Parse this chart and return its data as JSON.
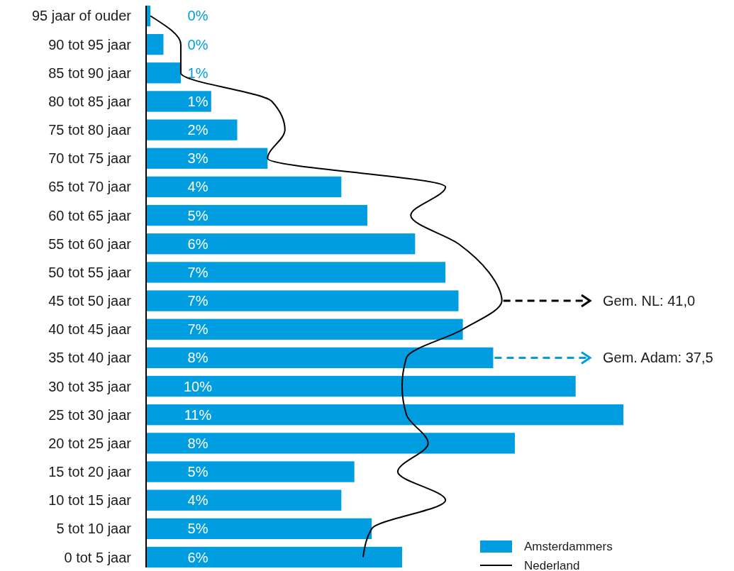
{
  "chart_data": {
    "type": "bar",
    "orientation": "horizontal",
    "legend": "bottom right",
    "categories": [
      "95 jaar of ouder",
      "90 tot 95 jaar",
      "85 tot 90 jaar",
      "80 tot 85 jaar",
      "75 tot 80 jaar",
      "70 tot 75 jaar",
      "65 tot 70 jaar",
      "60 tot 65 jaar",
      "55 tot 60 jaar",
      "50 tot 55 jaar",
      "45 tot 50 jaar",
      "40 tot 45 jaar",
      "35 tot 40 jaar",
      "30 tot 35 jaar",
      "25 tot 30 jaar",
      "20 tot 25 jaar",
      "15 tot 20 jaar",
      "10 tot 15 jaar",
      "5 tot 10 jaar",
      "0 tot 5 jaar"
    ],
    "series": [
      {
        "name": "Amsterdammers",
        "color": "#009ee0",
        "values": [
          0.1,
          0.4,
          0.8,
          1.5,
          2.1,
          2.8,
          4.5,
          5.1,
          6.2,
          6.9,
          7.2,
          7.3,
          8.0,
          9.9,
          11.0,
          8.5,
          4.8,
          4.5,
          5.2,
          5.9
        ],
        "value_labels": [
          "0%",
          "0%",
          "1%",
          "1%",
          "2%",
          "3%",
          "4%",
          "5%",
          "6%",
          "7%",
          "7%",
          "7%",
          "8%",
          "10%",
          "11%",
          "8%",
          "5%",
          "4%",
          "5%",
          "6%"
        ]
      },
      {
        "name": "Nederland",
        "type": "line",
        "color": "#000000",
        "values": [
          0.1,
          0.8,
          0.8,
          2.9,
          3.2,
          2.8,
          6.9,
          6.1,
          7.2,
          7.9,
          8.2,
          7.3,
          6.0,
          5.9,
          6.0,
          6.5,
          5.8,
          6.9,
          5.2,
          5.0
        ]
      }
    ],
    "annotations": [
      {
        "text": "Gem. NL: 41,0",
        "x": 8.2,
        "y": "45 tot 50 jaar"
      },
      {
        "text": "Gem. Adam: 37,5",
        "x": 8.0,
        "y": "35 tot 40 jaar"
      }
    ]
  }
}
